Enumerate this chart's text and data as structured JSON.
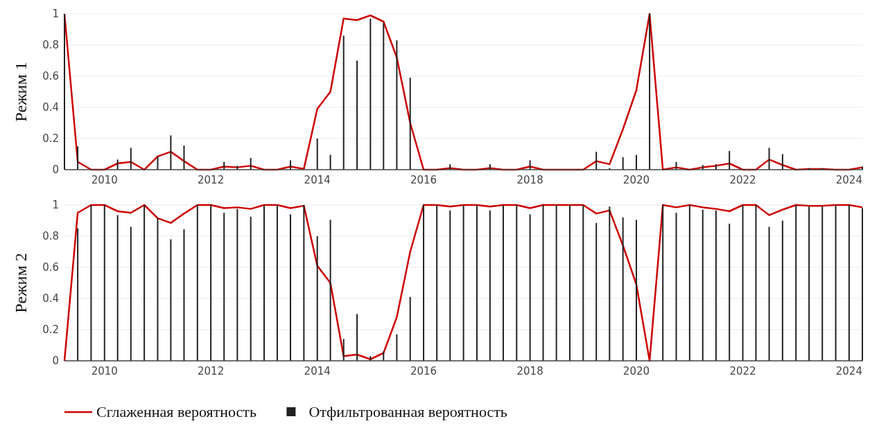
{
  "chart_data": [
    {
      "type": "bar",
      "ylabel": "Режим 1",
      "x": [
        "2009-04-01",
        "2009-07-01",
        "2009-10-01",
        "2010-01-01",
        "2010-04-01",
        "2010-07-01",
        "2010-10-01",
        "2011-01-01",
        "2011-04-01",
        "2011-07-01",
        "2011-10-01",
        "2012-01-01",
        "2012-04-01",
        "2012-07-01",
        "2012-10-01",
        "2013-01-01",
        "2013-04-01",
        "2013-07-01",
        "2013-10-01",
        "2014-01-01",
        "2014-04-01",
        "2014-07-01",
        "2014-10-01",
        "2015-01-01",
        "2015-04-01",
        "2015-07-01",
        "2015-10-01",
        "2016-01-01",
        "2016-04-01",
        "2016-07-01",
        "2016-10-01",
        "2017-01-01",
        "2017-04-01",
        "2017-07-01",
        "2017-10-01",
        "2018-01-01",
        "2018-04-01",
        "2018-07-01",
        "2018-10-01",
        "2019-01-01",
        "2019-04-01",
        "2019-07-01",
        "2019-10-01",
        "2020-01-01",
        "2020-04-01",
        "2020-07-01",
        "2020-10-01",
        "2021-01-01",
        "2021-04-01",
        "2021-07-01",
        "2021-10-01",
        "2022-01-01",
        "2022-04-01",
        "2022-07-01",
        "2022-10-01",
        "2023-01-01",
        "2023-04-01",
        "2023-07-01",
        "2023-10-01",
        "2024-01-01",
        "2024-04-01"
      ],
      "series": [
        {
          "color": "#222222",
          "values": [
            1,
            0.15,
            0,
            0,
            0.065,
            0.14,
            0,
            0.085,
            0.22,
            0.155,
            0,
            0,
            0.05,
            0.025,
            0.075,
            0,
            0,
            0.06,
            0,
            0.2,
            0.095,
            0.86,
            0.7,
            0.97,
            0.94,
            0.83,
            0.59,
            0,
            0,
            0.035,
            0,
            0,
            0.035,
            0,
            0,
            0.06,
            0,
            0,
            0,
            0,
            0.115,
            0.01,
            0.08,
            0.095,
            1,
            0,
            0.05,
            0,
            0.03,
            0.035,
            0.12,
            0,
            0,
            0.14,
            0.1,
            0,
            0.01,
            0.01,
            0,
            0,
            0.02
          ]
        },
        {
          "type": "line",
          "color": "#cc0000",
          "values": [
            1,
            0.05,
            0,
            0,
            0.04,
            0.05,
            0,
            0.085,
            0.115,
            0.055,
            0,
            0,
            0.02,
            0.015,
            0.025,
            0,
            0,
            0.02,
            0.005,
            0.39,
            0.5,
            0.97,
            0.96,
            0.99,
            0.95,
            0.72,
            0.3,
            0,
            0,
            0.01,
            0,
            0,
            0.01,
            0,
            0,
            0.02,
            0,
            0,
            0,
            0,
            0.055,
            0.035,
            0.26,
            0.51,
            1,
            0,
            0.015,
            0,
            0.015,
            0.025,
            0.04,
            0,
            0,
            0.065,
            0.03,
            0,
            0.005,
            0.005,
            0,
            0,
            0.015
          ]
        }
      ],
      "xlim": [
        "2009-04-01",
        "2024-04-01"
      ],
      "xticks": [
        "2010",
        "2012",
        "2014",
        "2016",
        "2018",
        "2020",
        "2022",
        "2024"
      ],
      "ylim": [
        0,
        1
      ],
      "yticks": [
        0,
        0.2,
        0.4,
        0.6,
        0.8,
        1
      ],
      "grid": "y",
      "legend": false
    },
    {
      "type": "bar",
      "ylabel": "Режим 2",
      "x": [
        "2009-04-01",
        "2009-07-01",
        "2009-10-01",
        "2010-01-01",
        "2010-04-01",
        "2010-07-01",
        "2010-10-01",
        "2011-01-01",
        "2011-04-01",
        "2011-07-01",
        "2011-10-01",
        "2012-01-01",
        "2012-04-01",
        "2012-07-01",
        "2012-10-01",
        "2013-01-01",
        "2013-04-01",
        "2013-07-01",
        "2013-10-01",
        "2014-01-01",
        "2014-04-01",
        "2014-07-01",
        "2014-10-01",
        "2015-01-01",
        "2015-04-01",
        "2015-07-01",
        "2015-10-01",
        "2016-01-01",
        "2016-04-01",
        "2016-07-01",
        "2016-10-01",
        "2017-01-01",
        "2017-04-01",
        "2017-07-01",
        "2017-10-01",
        "2018-01-01",
        "2018-04-01",
        "2018-07-01",
        "2018-10-01",
        "2019-01-01",
        "2019-04-01",
        "2019-07-01",
        "2019-10-01",
        "2020-01-01",
        "2020-04-01",
        "2020-07-01",
        "2020-10-01",
        "2021-01-01",
        "2021-04-01",
        "2021-07-01",
        "2021-10-01",
        "2022-01-01",
        "2022-04-01",
        "2022-07-01",
        "2022-10-01",
        "2023-01-01",
        "2023-04-01",
        "2023-07-01",
        "2023-10-01",
        "2024-01-01",
        "2024-04-01"
      ],
      "series": [
        {
          "type": "line",
          "name": "Сглаженная вероятность",
          "color": "#cc0000",
          "values": [
            0,
            0.95,
            1,
            1,
            0.96,
            0.95,
            1,
            0.915,
            0.885,
            0.945,
            1,
            1,
            0.98,
            0.985,
            0.975,
            1,
            1,
            0.98,
            0.995,
            0.61,
            0.5,
            0.03,
            0.04,
            0.01,
            0.05,
            0.28,
            0.7,
            1,
            1,
            0.99,
            1,
            1,
            0.99,
            1,
            1,
            0.98,
            1,
            1,
            1,
            1,
            0.945,
            0.965,
            0.74,
            0.49,
            0,
            1,
            0.985,
            1,
            0.985,
            0.975,
            0.96,
            1,
            1,
            0.935,
            0.97,
            1,
            0.995,
            0.995,
            1,
            1,
            0.985
          ]
        },
        {
          "name": "Отфильтрованная вероятность",
          "color": "#222222",
          "values": [
            0,
            0.85,
            1,
            1,
            0.935,
            0.86,
            1,
            0.915,
            0.78,
            0.845,
            1,
            1,
            0.95,
            0.975,
            0.925,
            1,
            1,
            0.94,
            1,
            0.8,
            0.905,
            0.14,
            0.3,
            0.03,
            0.06,
            0.17,
            0.41,
            1,
            1,
            0.965,
            1,
            1,
            0.965,
            1,
            1,
            0.94,
            1,
            1,
            1,
            1,
            0.885,
            0.99,
            0.92,
            0.905,
            0,
            1,
            0.95,
            1,
            0.97,
            0.965,
            0.88,
            1,
            1,
            0.86,
            0.9,
            1,
            0.99,
            0.99,
            1,
            1,
            0.98
          ]
        }
      ],
      "xlim": [
        "2009-04-01",
        "2024-04-01"
      ],
      "xticks": [
        "2010",
        "2012",
        "2014",
        "2016",
        "2018",
        "2020",
        "2022",
        "2024"
      ],
      "ylim": [
        0,
        1
      ],
      "yticks": [
        0,
        0.2,
        0.4,
        0.6,
        0.8,
        1
      ],
      "grid": "y",
      "legend": "bottom"
    }
  ]
}
